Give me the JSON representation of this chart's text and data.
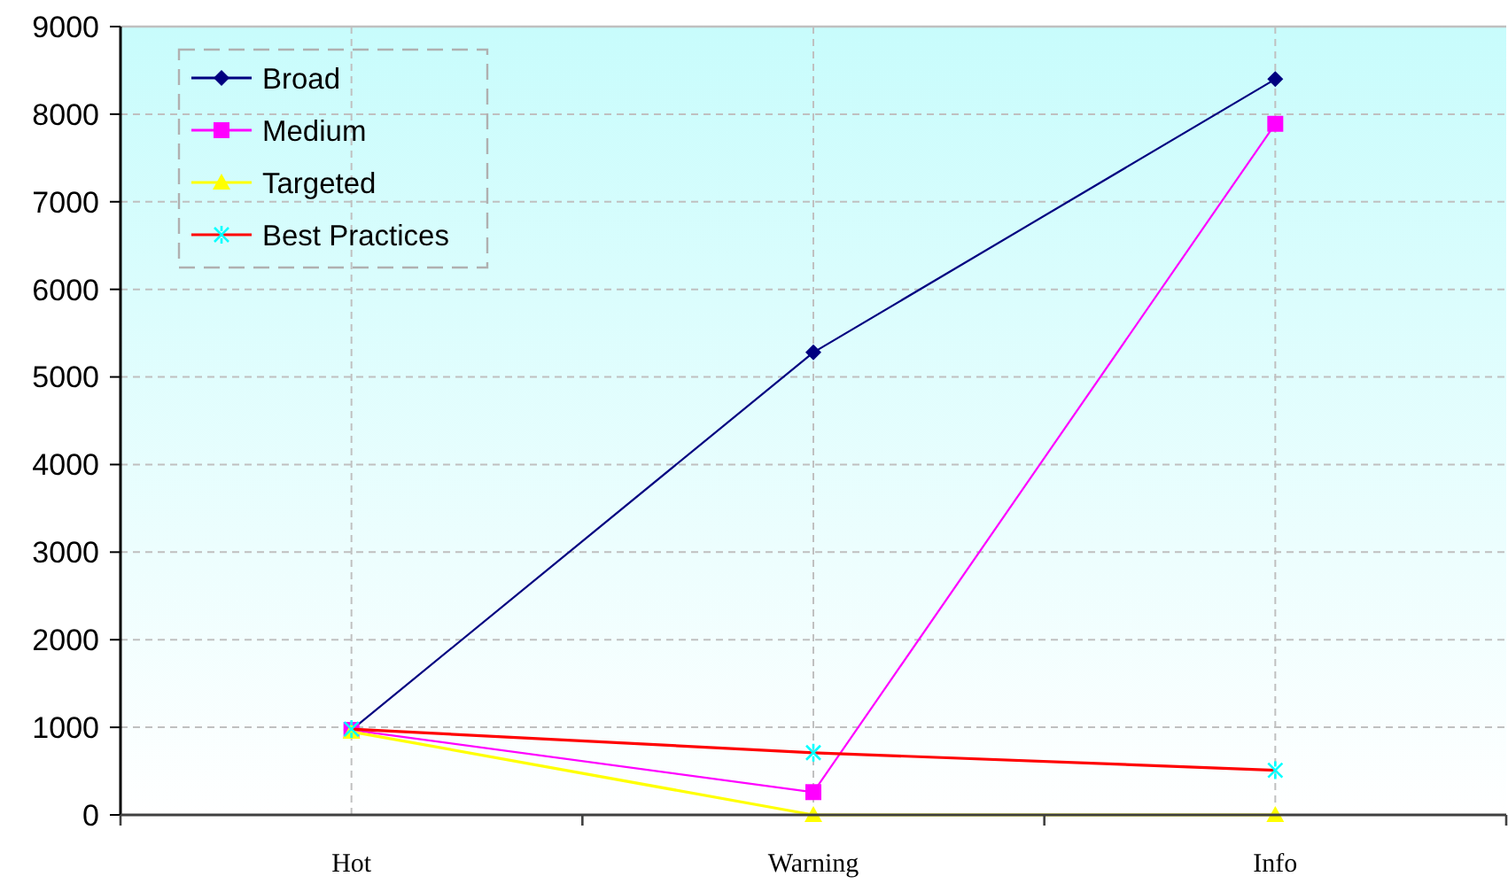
{
  "chart_data": {
    "type": "line",
    "categories": [
      "Hot",
      "Warning",
      "Info"
    ],
    "series": [
      {
        "name": "Broad",
        "color": "#000080",
        "marker": "diamond",
        "values": [
          970,
          5280,
          8400
        ]
      },
      {
        "name": "Medium",
        "color": "#ff00ff",
        "marker": "square",
        "values": [
          970,
          260,
          7890
        ]
      },
      {
        "name": "Targeted",
        "color": "#ffff00",
        "marker": "triangle",
        "values": [
          950,
          0,
          0
        ]
      },
      {
        "name": "Best Practices",
        "color": "#ff0000",
        "colors": [
          "#00ffff",
          "#00ffff",
          "#00ffff"
        ],
        "marker": "cross",
        "values": [
          980,
          710,
          510
        ]
      }
    ],
    "ylim": [
      0,
      9000
    ],
    "yticks": [
      0,
      1000,
      2000,
      3000,
      4000,
      5000,
      6000,
      7000,
      8000,
      9000
    ],
    "grid": true,
    "legend": "top left",
    "line_style": "solid"
  }
}
